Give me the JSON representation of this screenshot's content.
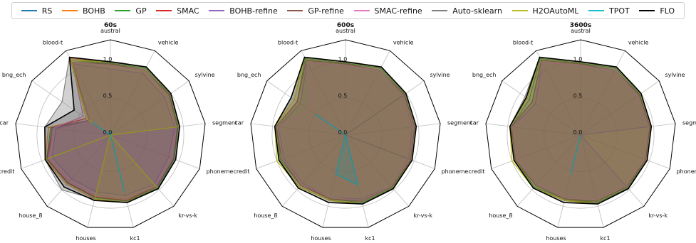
{
  "legend": [
    {
      "name": "RS",
      "color": "#1f77b4"
    },
    {
      "name": "BOHB",
      "color": "#ff7f0e"
    },
    {
      "name": "GP",
      "color": "#2ca02c"
    },
    {
      "name": "SMAC",
      "color": "#d62728"
    },
    {
      "name": "BOHB-refine",
      "color": "#9467bd"
    },
    {
      "name": "GP-refine",
      "color": "#8c564b"
    },
    {
      "name": "SMAC-refine",
      "color": "#e377c2"
    },
    {
      "name": "Auto-sklearn",
      "color": "#7f7f7f"
    },
    {
      "name": "H2OAutoML",
      "color": "#bcbd22"
    },
    {
      "name": "TPOT",
      "color": "#17becf"
    },
    {
      "name": "FLO",
      "color": "#000000"
    }
  ],
  "chart_data": [
    {
      "type": "radar",
      "title": "60s",
      "axes": [
        "austral",
        "vehicle",
        "sylvine",
        "segment",
        "phoneme",
        "kr-vs-k",
        "kc1",
        "houses",
        "house_8",
        "credit",
        "car",
        "bng_ech",
        "blood-t"
      ],
      "rlim": [
        0,
        1.3
      ],
      "ticks": [
        0.0,
        0.5,
        1.0
      ],
      "series": [
        {
          "name": "RS",
          "values": [
            0.0,
            0.0,
            0.0,
            0.0,
            0.0,
            0.0,
            0.0,
            0.0,
            0.0,
            0.0,
            0.0,
            0.0,
            0.0
          ]
        },
        {
          "name": "BOHB",
          "values": [
            1.0,
            1.05,
            1.0,
            0.95,
            0.95,
            0.98,
            0.95,
            0.9,
            0.9,
            0.95,
            0.85,
            0.4,
            1.18
          ]
        },
        {
          "name": "GP",
          "values": [
            0.98,
            1.03,
            0.98,
            0.93,
            0.93,
            0.97,
            0.93,
            0.88,
            0.88,
            0.93,
            0.82,
            0.35,
            1.15
          ]
        },
        {
          "name": "SMAC",
          "values": [
            0.97,
            1.0,
            0.97,
            0.92,
            0.92,
            0.95,
            0.92,
            0.87,
            0.87,
            0.92,
            0.8,
            0.4,
            1.12
          ]
        },
        {
          "name": "BOHB-refine",
          "values": [
            0.9,
            0.95,
            0.9,
            0.88,
            0.85,
            0.9,
            0.85,
            0.8,
            0.8,
            0.85,
            0.75,
            0.35,
            1.1
          ]
        },
        {
          "name": "GP-refine",
          "values": [
            0.97,
            1.0,
            0.97,
            0.92,
            0.92,
            0.95,
            0.9,
            0.85,
            0.85,
            0.9,
            0.8,
            0.35,
            1.12
          ]
        },
        {
          "name": "SMAC-refine",
          "values": [
            0.95,
            1.0,
            0.95,
            0.9,
            0.9,
            0.93,
            0.9,
            0.85,
            0.85,
            0.9,
            0.78,
            0.45,
            1.12
          ]
        },
        {
          "name": "Auto-sklearn",
          "values": [
            1.0,
            1.05,
            1.0,
            0.95,
            0.95,
            0.98,
            0.95,
            0.9,
            1.0,
            0.95,
            0.9,
            0.8,
            1.2
          ]
        },
        {
          "name": "H2OAutoML",
          "values": [
            1.0,
            1.05,
            1.0,
            0.95,
            0.0,
            0.98,
            0.95,
            0.9,
            0.0,
            0.95,
            0.0,
            0.4,
            1.15
          ]
        },
        {
          "name": "TPOT",
          "values": [
            0.05,
            0.05,
            0.0,
            0.0,
            0.0,
            0.0,
            0.8,
            0.0,
            0.0,
            0.0,
            0.0,
            0.3,
            0.0
          ]
        },
        {
          "name": "FLO",
          "values": [
            1.0,
            1.05,
            1.0,
            0.95,
            0.95,
            0.98,
            0.95,
            0.92,
            0.95,
            0.95,
            0.9,
            0.6,
            1.2
          ]
        }
      ]
    },
    {
      "type": "radar",
      "title": "600s",
      "axes": [
        "austral",
        "vehicle",
        "sylvine",
        "segment",
        "phoneme",
        "kr-vs-k",
        "kc1",
        "houses",
        "house_8",
        "credit",
        "car",
        "bng_ech",
        "blood-t"
      ],
      "rlim": [
        0,
        1.3
      ],
      "ticks": [
        0.0,
        0.5,
        1.0
      ],
      "series": [
        {
          "name": "RS",
          "values": [
            0.0,
            0.0,
            1.0,
            0.0,
            0.95,
            0.0,
            0.0,
            0.0,
            0.0,
            0.0,
            0.0,
            0.0,
            0.0
          ]
        },
        {
          "name": "BOHB",
          "values": [
            1.0,
            1.05,
            1.0,
            0.97,
            0.97,
            0.98,
            0.97,
            0.92,
            0.95,
            0.97,
            0.97,
            0.85,
            1.2
          ]
        },
        {
          "name": "GP",
          "values": [
            0.98,
            1.03,
            0.98,
            0.95,
            0.95,
            0.97,
            0.95,
            0.9,
            0.92,
            0.95,
            0.95,
            0.8,
            1.18
          ]
        },
        {
          "name": "SMAC",
          "values": [
            0.97,
            1.0,
            0.97,
            0.95,
            0.95,
            0.95,
            0.93,
            0.9,
            0.9,
            0.93,
            0.95,
            0.8,
            1.15
          ]
        },
        {
          "name": "BOHB-refine",
          "values": [
            0.95,
            1.0,
            0.95,
            0.92,
            0.92,
            0.93,
            0.9,
            0.88,
            0.88,
            0.9,
            0.92,
            0.75,
            1.12
          ]
        },
        {
          "name": "GP-refine",
          "values": [
            0.97,
            1.0,
            0.97,
            0.95,
            0.95,
            0.95,
            0.93,
            0.9,
            0.92,
            0.93,
            0.95,
            0.8,
            1.15
          ]
        },
        {
          "name": "SMAC-refine",
          "values": [
            0.95,
            1.0,
            0.95,
            0.93,
            0.93,
            0.93,
            0.92,
            0.88,
            0.9,
            0.92,
            0.93,
            0.6,
            1.12
          ]
        },
        {
          "name": "Auto-sklearn",
          "values": [
            1.0,
            1.05,
            1.0,
            0.97,
            0.97,
            0.98,
            0.97,
            0.92,
            0.95,
            0.97,
            0.97,
            0.9,
            1.2
          ]
        },
        {
          "name": "H2OAutoML",
          "values": [
            1.0,
            1.05,
            1.0,
            0.97,
            0.97,
            0.98,
            0.97,
            0.92,
            0.95,
            1.0,
            0.97,
            0.85,
            1.2
          ]
        },
        {
          "name": "TPOT",
          "values": [
            0.0,
            0.0,
            0.0,
            0.0,
            0.0,
            0.0,
            0.7,
            0.55,
            0.0,
            0.0,
            0.0,
            0.5,
            0.0
          ]
        },
        {
          "name": "FLO",
          "values": [
            1.0,
            1.05,
            1.0,
            0.97,
            0.97,
            0.98,
            0.97,
            0.95,
            0.97,
            0.97,
            0.97,
            0.9,
            1.2
          ]
        }
      ]
    },
    {
      "type": "radar",
      "title": "3600s",
      "axes": [
        "austral",
        "vehicle",
        "sylvine",
        "segment",
        "phoneme",
        "kr-vs-k",
        "kc1",
        "houses",
        "house_8",
        "credit",
        "car",
        "bng_ech",
        "blood-t"
      ],
      "rlim": [
        0,
        1.3
      ],
      "ticks": [
        0.0,
        0.5,
        1.0
      ],
      "series": [
        {
          "name": "RS",
          "values": [
            0.0,
            0.0,
            0.0,
            0.0,
            0.0,
            0.0,
            0.0,
            0.0,
            0.0,
            0.0,
            0.0,
            0.0,
            0.0
          ]
        },
        {
          "name": "BOHB",
          "values": [
            1.0,
            1.05,
            1.0,
            0.97,
            0.97,
            0.98,
            0.95,
            0.92,
            0.97,
            0.97,
            0.97,
            0.88,
            1.2
          ]
        },
        {
          "name": "GP",
          "values": [
            0.98,
            1.03,
            0.98,
            0.95,
            0.95,
            0.97,
            0.95,
            0.9,
            0.95,
            0.95,
            0.95,
            0.85,
            1.18
          ]
        },
        {
          "name": "SMAC",
          "values": [
            0.97,
            1.0,
            0.97,
            0.95,
            0.95,
            0.95,
            0.93,
            0.9,
            0.92,
            0.95,
            0.95,
            0.8,
            1.15
          ]
        },
        {
          "name": "BOHB-refine",
          "values": [
            0.95,
            1.0,
            0.95,
            0.93,
            0.0,
            0.93,
            0.9,
            0.88,
            0.9,
            0.92,
            0.93,
            0.75,
            1.12
          ]
        },
        {
          "name": "GP-refine",
          "values": [
            0.97,
            1.0,
            0.97,
            0.95,
            0.95,
            0.95,
            0.93,
            0.9,
            0.92,
            0.95,
            0.95,
            0.8,
            1.15
          ]
        },
        {
          "name": "SMAC-refine",
          "values": [
            0.95,
            1.0,
            0.95,
            0.93,
            0.93,
            0.93,
            0.9,
            0.88,
            0.9,
            0.92,
            0.93,
            0.7,
            1.12
          ]
        },
        {
          "name": "Auto-sklearn",
          "values": [
            1.0,
            1.05,
            1.0,
            0.97,
            0.97,
            0.98,
            0.97,
            0.92,
            0.97,
            0.97,
            0.97,
            0.92,
            1.2
          ]
        },
        {
          "name": "H2OAutoML",
          "values": [
            1.0,
            1.05,
            1.0,
            0.97,
            0.97,
            0.98,
            0.97,
            0.92,
            0.97,
            1.0,
            0.97,
            0.88,
            1.2
          ]
        },
        {
          "name": "TPOT",
          "values": [
            0.0,
            0.0,
            0.0,
            0.0,
            0.0,
            0.0,
            0.0,
            0.55,
            0.0,
            0.0,
            0.0,
            0.0,
            0.0
          ]
        },
        {
          "name": "FLO",
          "values": [
            1.0,
            1.05,
            1.0,
            0.97,
            0.97,
            0.98,
            0.97,
            0.95,
            0.97,
            0.97,
            0.97,
            0.9,
            1.2
          ]
        }
      ]
    }
  ]
}
